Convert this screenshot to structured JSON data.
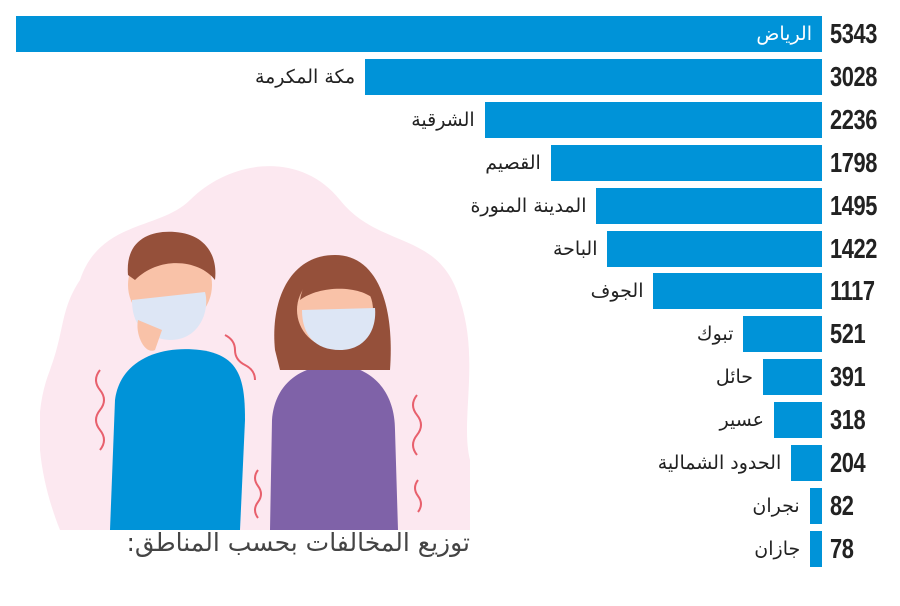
{
  "chart_data": {
    "type": "bar",
    "orientation": "horizontal",
    "title": "توزيع المخالفات بحسب المناطق:",
    "categories": [
      "الرياض",
      "مكة المكرمة",
      "الشرقية",
      "القصيم",
      "المدينة المنورة",
      "الباحة",
      "الجوف",
      "تبوك",
      "حائل",
      "عسير",
      "الحدود الشمالية",
      "نجران",
      "جازان"
    ],
    "values": [
      5343,
      3028,
      2236,
      1798,
      1495,
      1422,
      1117,
      521,
      391,
      318,
      204,
      82,
      78
    ],
    "xlim": [
      0,
      5343
    ],
    "bar_color": "#0093d8",
    "grid": false
  }
}
